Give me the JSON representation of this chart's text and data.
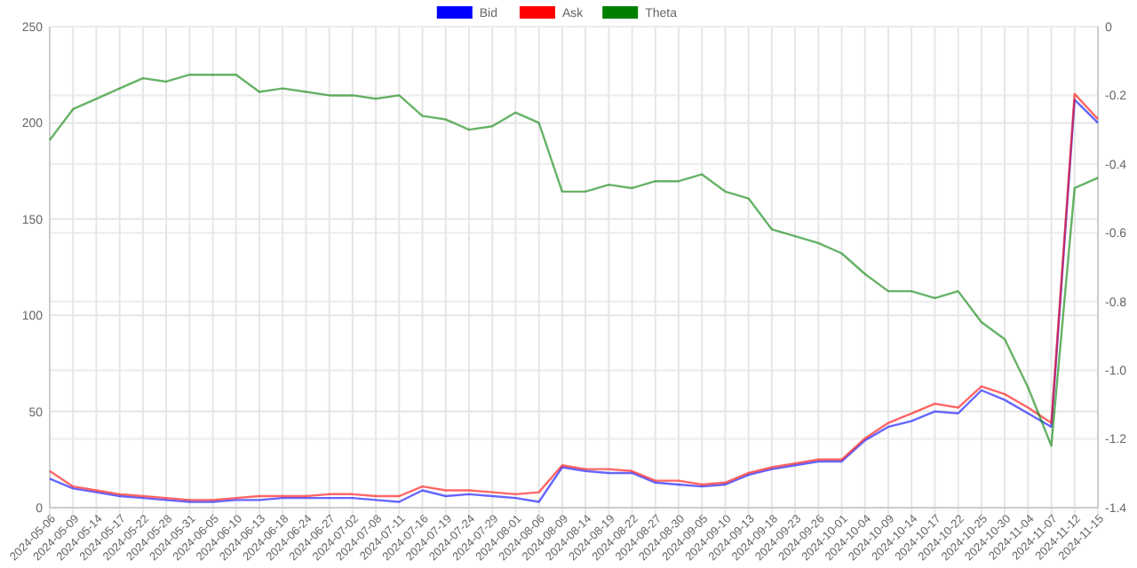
{
  "chart_data": {
    "type": "line",
    "categories": [
      "2024-05-06",
      "2024-05-09",
      "2024-05-14",
      "2024-05-17",
      "2024-05-22",
      "2024-05-28",
      "2024-05-31",
      "2024-06-05",
      "2024-06-10",
      "2024-06-13",
      "2024-06-18",
      "2024-06-24",
      "2024-06-27",
      "2024-07-02",
      "2024-07-08",
      "2024-07-11",
      "2024-07-16",
      "2024-07-19",
      "2024-07-24",
      "2024-07-29",
      "2024-08-01",
      "2024-08-06",
      "2024-08-09",
      "2024-08-14",
      "2024-08-19",
      "2024-08-22",
      "2024-08-27",
      "2024-08-30",
      "2024-09-05",
      "2024-09-10",
      "2024-09-13",
      "2024-09-18",
      "2024-09-23",
      "2024-09-26",
      "2024-10-01",
      "2024-10-04",
      "2024-10-09",
      "2024-10-14",
      "2024-10-17",
      "2024-10-22",
      "2024-10-25",
      "2024-10-30",
      "2024-11-04",
      "2024-11-07",
      "2024-11-12",
      "2024-11-15"
    ],
    "series": [
      {
        "name": "Bid",
        "color": "#0000ff",
        "values": [
          15,
          10,
          8,
          6,
          5,
          4,
          3,
          3,
          4,
          4,
          5,
          5,
          5,
          5,
          4,
          3,
          9,
          6,
          7,
          6,
          5,
          3,
          21,
          19,
          18,
          18,
          13,
          12,
          11,
          12,
          17,
          20,
          22,
          24,
          24,
          35,
          42,
          45,
          50,
          49,
          61,
          56,
          49,
          42,
          212,
          200
        ]
      },
      {
        "name": "Ask",
        "color": "#ff0000",
        "values": [
          19,
          11,
          9,
          7,
          6,
          5,
          4,
          4,
          5,
          6,
          6,
          6,
          7,
          7,
          6,
          6,
          11,
          9,
          9,
          8,
          7,
          8,
          22,
          20,
          20,
          19,
          14,
          14,
          12,
          13,
          18,
          21,
          23,
          25,
          25,
          36,
          44,
          49,
          54,
          52,
          63,
          59,
          52,
          44,
          215,
          202
        ]
      },
      {
        "name": "Theta",
        "color": "#008000",
        "axis": "y2",
        "values": [
          -0.33,
          -0.24,
          -0.21,
          -0.18,
          -0.15,
          -0.16,
          -0.14,
          -0.14,
          -0.14,
          -0.19,
          -0.18,
          -0.19,
          -0.2,
          -0.2,
          -0.21,
          -0.2,
          -0.26,
          -0.27,
          -0.3,
          -0.29,
          -0.25,
          -0.28,
          -0.48,
          -0.48,
          -0.46,
          -0.47,
          -0.45,
          -0.45,
          -0.43,
          -0.48,
          -0.5,
          -0.59,
          -0.61,
          -0.63,
          -0.66,
          -0.72,
          -0.77,
          -0.77,
          -0.79,
          -0.77,
          -0.86,
          -0.91,
          -1.05,
          -1.22,
          -0.47,
          -0.44
        ]
      }
    ],
    "ylim": [
      0,
      250
    ],
    "yticks": [
      0,
      50,
      100,
      150,
      200,
      250
    ],
    "y2lim": [
      -1.4,
      0
    ],
    "y2ticks": [
      {
        "value": -1.4,
        "label": "-1.4"
      },
      {
        "value": -1.2,
        "label": "-1.2"
      },
      {
        "value": -1,
        "label": "-1.0"
      },
      {
        "value": -0.8,
        "label": "-0.8"
      },
      {
        "value": -0.6,
        "label": "-0.6"
      },
      {
        "value": -0.4,
        "label": "-0.4"
      },
      {
        "value": -0.2,
        "label": "-0.2"
      },
      {
        "value": 0,
        "label": "0"
      }
    ],
    "grid": true,
    "legend": "top",
    "marker": "none",
    "line_style": "solid"
  }
}
